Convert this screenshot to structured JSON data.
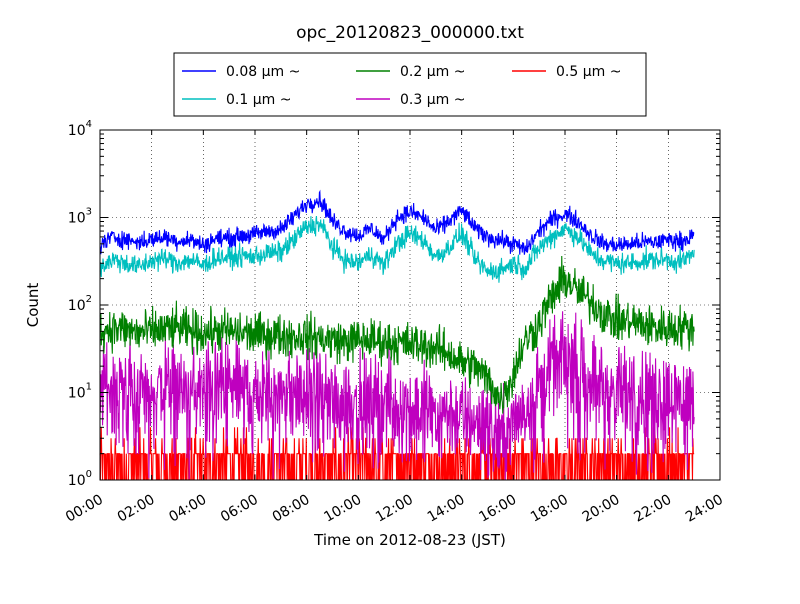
{
  "chart_data": {
    "type": "line",
    "title": "opc_20120823_000000.txt",
    "xlabel": "Time on 2012-08-23 (JST)",
    "ylabel": "Count",
    "y_scale": "log",
    "ylim": [
      1,
      10000
    ],
    "xlim_hours": [
      0,
      24
    ],
    "x_ticks": [
      "00:00",
      "02:00",
      "04:00",
      "06:00",
      "08:00",
      "10:00",
      "12:00",
      "14:00",
      "16:00",
      "18:00",
      "20:00",
      "22:00",
      "24:00"
    ],
    "y_ticks": [
      {
        "value": 1,
        "base": "10",
        "exp": "0"
      },
      {
        "value": 10,
        "base": "10",
        "exp": "1"
      },
      {
        "value": 100,
        "base": "10",
        "exp": "2"
      },
      {
        "value": 1000,
        "base": "10",
        "exp": "3"
      },
      {
        "value": 10000,
        "base": "10",
        "exp": "4"
      }
    ],
    "grid": true,
    "legend_position": "top-center",
    "series": [
      {
        "name": "0.08 μm ~",
        "color": "#0000ff",
        "x": [
          0,
          0.5,
          1,
          1.5,
          2,
          2.5,
          3,
          3.5,
          4,
          4.5,
          5,
          5.5,
          6,
          6.5,
          7,
          7.5,
          8,
          8.5,
          9,
          9.5,
          10,
          10.5,
          11,
          11.5,
          12,
          12.5,
          13,
          13.5,
          14,
          14.5,
          15,
          15.5,
          16,
          16.5,
          17,
          17.5,
          18,
          18.5,
          19,
          19.5,
          20,
          20.5,
          21,
          21.5,
          22,
          22.5,
          23
        ],
        "y": [
          480,
          600,
          560,
          520,
          560,
          600,
          540,
          560,
          480,
          580,
          580,
          620,
          640,
          700,
          720,
          1000,
          1450,
          1600,
          900,
          700,
          620,
          750,
          550,
          1000,
          1150,
          1000,
          700,
          900,
          1200,
          750,
          600,
          550,
          500,
          420,
          700,
          950,
          1100,
          900,
          620,
          500,
          480,
          500,
          520,
          520,
          560,
          540,
          620
        ]
      },
      {
        "name": "0.1 μm ~",
        "color": "#00bfbf",
        "x": [
          0,
          0.5,
          1,
          1.5,
          2,
          2.5,
          3,
          3.5,
          4,
          4.5,
          5,
          5.5,
          6,
          6.5,
          7,
          7.5,
          8,
          8.5,
          9,
          9.5,
          10,
          10.5,
          11,
          11.5,
          12,
          12.5,
          13,
          13.5,
          14,
          14.5,
          15,
          15.5,
          16,
          16.5,
          17,
          17.5,
          18,
          18.5,
          19,
          19.5,
          20,
          20.5,
          21,
          21.5,
          22,
          22.5,
          23
        ],
        "y": [
          270,
          330,
          300,
          270,
          320,
          340,
          300,
          330,
          280,
          350,
          350,
          360,
          360,
          390,
          400,
          550,
          780,
          850,
          450,
          320,
          300,
          380,
          280,
          500,
          650,
          550,
          350,
          450,
          650,
          330,
          240,
          250,
          300,
          260,
          450,
          600,
          750,
          600,
          380,
          320,
          300,
          300,
          320,
          330,
          330,
          310,
          380
        ]
      },
      {
        "name": "0.2 μm ~",
        "color": "#008000",
        "x": [
          0,
          0.5,
          1,
          1.5,
          2,
          2.5,
          3,
          3.5,
          4,
          4.5,
          5,
          5.5,
          6,
          6.5,
          7,
          7.5,
          8,
          8.5,
          9,
          9.5,
          10,
          10.5,
          11,
          11.5,
          12,
          12.5,
          13,
          13.5,
          14,
          14.5,
          15,
          15.5,
          16,
          16.5,
          17,
          17.5,
          18,
          18.5,
          19,
          19.5,
          20,
          20.5,
          21,
          21.5,
          22,
          22.5,
          23
        ],
        "y": [
          50,
          55,
          52,
          48,
          50,
          52,
          55,
          50,
          48,
          50,
          50,
          48,
          46,
          45,
          45,
          44,
          44,
          42,
          40,
          38,
          40,
          40,
          38,
          37,
          36,
          35,
          32,
          28,
          22,
          20,
          14,
          8,
          15,
          40,
          60,
          120,
          200,
          140,
          110,
          80,
          65,
          65,
          60,
          55,
          55,
          55,
          55
        ]
      },
      {
        "name": "0.3 μm ~",
        "color": "#bf00bf",
        "x": [
          0,
          0.5,
          1,
          1.5,
          2,
          2.5,
          3,
          3.5,
          4,
          4.5,
          5,
          5.5,
          6,
          6.5,
          7,
          7.5,
          8,
          8.5,
          9,
          9.5,
          10,
          10.5,
          11,
          11.5,
          12,
          12.5,
          13,
          13.5,
          14,
          14.5,
          15,
          15.5,
          16,
          16.5,
          17,
          17.5,
          18,
          18.5,
          19,
          19.5,
          20,
          20.5,
          21,
          21.5,
          22,
          22.5,
          23
        ],
        "y": [
          12,
          12,
          11,
          10,
          10,
          12,
          11,
          10,
          10,
          11,
          12,
          11,
          11,
          10,
          10,
          9,
          9,
          9,
          8,
          8,
          8,
          8,
          8,
          7,
          7,
          7,
          6,
          6,
          5,
          5,
          4,
          3,
          4,
          8,
          12,
          18,
          25,
          20,
          15,
          12,
          10,
          10,
          10,
          9,
          9,
          9,
          9
        ]
      },
      {
        "name": "0.5 μm ~",
        "color": "#ff0000",
        "x": [
          0,
          0.5,
          1,
          1.5,
          2,
          2.5,
          3,
          3.5,
          4,
          4.5,
          5,
          5.5,
          6,
          6.5,
          7,
          7.5,
          8,
          8.5,
          9,
          9.5,
          10,
          10.5,
          11,
          11.5,
          12,
          12.5,
          13,
          13.5,
          14,
          14.5,
          15,
          15.5,
          16,
          16.5,
          17,
          17.5,
          18,
          18.5,
          19,
          19.5,
          20,
          20.5,
          21,
          21.5,
          22,
          22.5,
          23
        ],
        "y": [
          2,
          2,
          2,
          2,
          2,
          2,
          2,
          2,
          2,
          2,
          2,
          2,
          2,
          2,
          2,
          2,
          2,
          2,
          2,
          2,
          2,
          2,
          2,
          2,
          2,
          2,
          2,
          2,
          2,
          2,
          2,
          2,
          2,
          2,
          2,
          2,
          2,
          2,
          2,
          2,
          2,
          2,
          2,
          2,
          2,
          2,
          2
        ]
      }
    ]
  }
}
